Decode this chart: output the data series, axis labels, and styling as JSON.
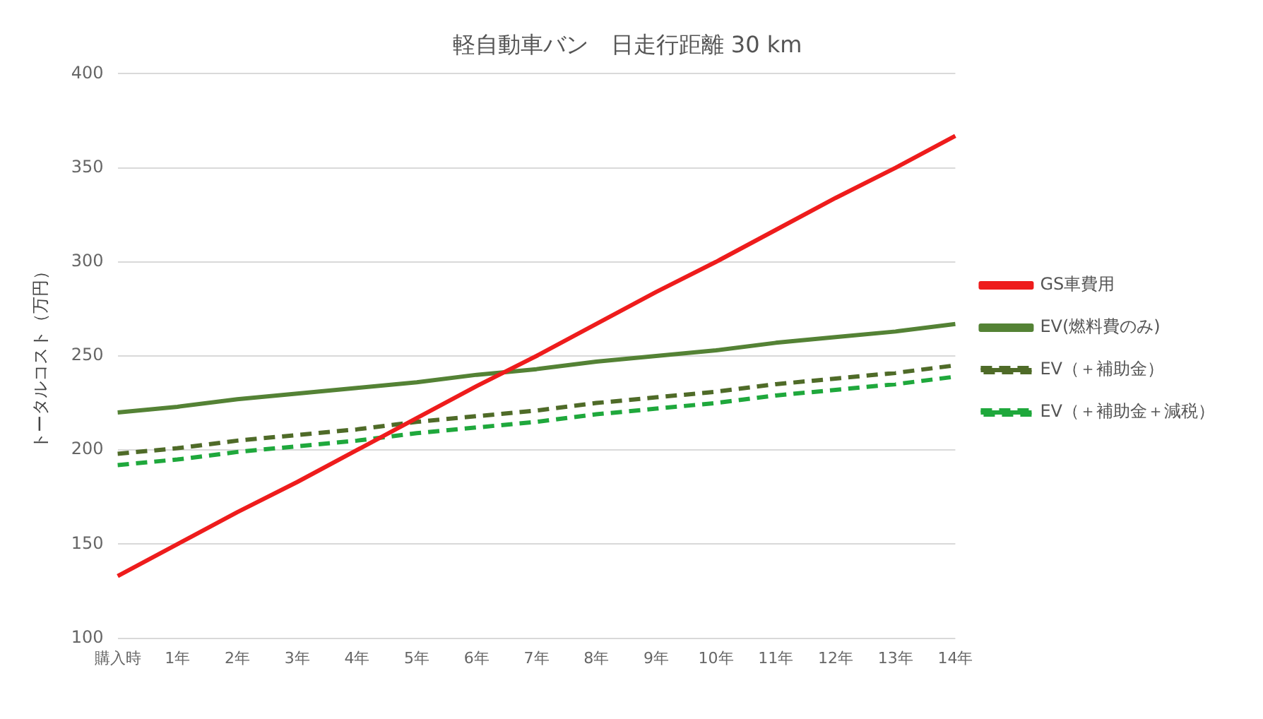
{
  "chart_data": {
    "type": "line",
    "title": "軽自動車バン　日走行距離 30 km",
    "ylabel": "トータルコスト（万円）",
    "categories": [
      "購入時",
      "1年",
      "2年",
      "3年",
      "4年",
      "5年",
      "6年",
      "7年",
      "8年",
      "9年",
      "10年",
      "11年",
      "12年",
      "13年",
      "14年"
    ],
    "series": [
      {
        "name": "GS車費用",
        "color": "#ee1c1c",
        "line_style": "solid",
        "values": [
          133,
          150,
          167,
          183,
          200,
          217,
          234,
          250,
          267,
          284,
          300,
          317,
          334,
          350,
          367
        ]
      },
      {
        "name": "EV(燃料費のみ)",
        "color": "#548235",
        "line_style": "solid",
        "values": [
          220,
          223,
          227,
          230,
          233,
          236,
          240,
          243,
          247,
          250,
          253,
          257,
          260,
          263,
          267
        ]
      },
      {
        "name": "EV（＋補助金）",
        "color": "#4f6b28",
        "line_style": "dashed",
        "values": [
          198,
          201,
          205,
          208,
          211,
          215,
          218,
          221,
          225,
          228,
          231,
          235,
          238,
          241,
          245
        ]
      },
      {
        "name": "EV（＋補助金＋減税）",
        "color": "#1fa83c",
        "line_style": "dashed",
        "values": [
          192,
          195,
          199,
          202,
          205,
          209,
          212,
          215,
          219,
          222,
          225,
          229,
          232,
          235,
          239
        ]
      }
    ],
    "ylim": [
      100,
      400
    ],
    "yticks": [
      100,
      150,
      200,
      250,
      300,
      350,
      400
    ],
    "grid": "y",
    "legend": "right",
    "marker": "none"
  }
}
